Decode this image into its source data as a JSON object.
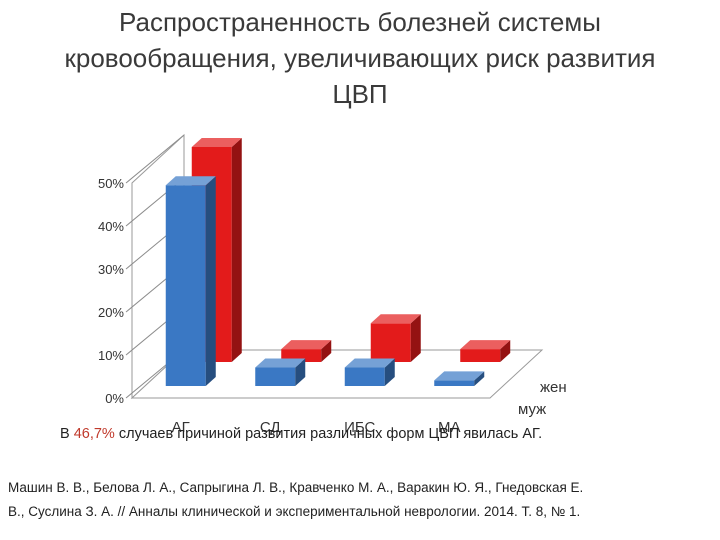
{
  "title_lines": [
    "Распространенность болезней системы",
    "кровообращения, увеличивающих риск развития",
    "ЦВП"
  ],
  "chart_data": {
    "type": "bar",
    "three_d": true,
    "categories": [
      "АГ",
      "СД",
      "ИБС",
      "МА"
    ],
    "series": [
      {
        "name": "жен",
        "color": "#e31b1b",
        "values": [
          50.0,
          3.0,
          9.0,
          3.0
        ]
      },
      {
        "name": "муж",
        "color": "#3a78c4",
        "values": [
          46.7,
          4.3,
          4.3,
          1.3
        ]
      }
    ],
    "y_ticks": [
      "0%",
      "10%",
      "20%",
      "30%",
      "40%",
      "50%"
    ],
    "ylim": [
      0,
      50
    ],
    "grid": true,
    "legend_position": "right (depth axis labels)"
  },
  "caption": {
    "prefix": "В ",
    "percent": "46,7%",
    "suffix": " случаев причиной развития различных форм ЦВП явилась АГ."
  },
  "reference_lines": [
    "Машин В. В., Белова Л. А., Сапрыгина Л. В., Кравченко М. А., Варакин Ю. Я., Гнедовская Е.",
    "В., Суслина З. А. // Анналы клинической и экспериментальной неврологии. 2014. Т. 8, № 1."
  ]
}
